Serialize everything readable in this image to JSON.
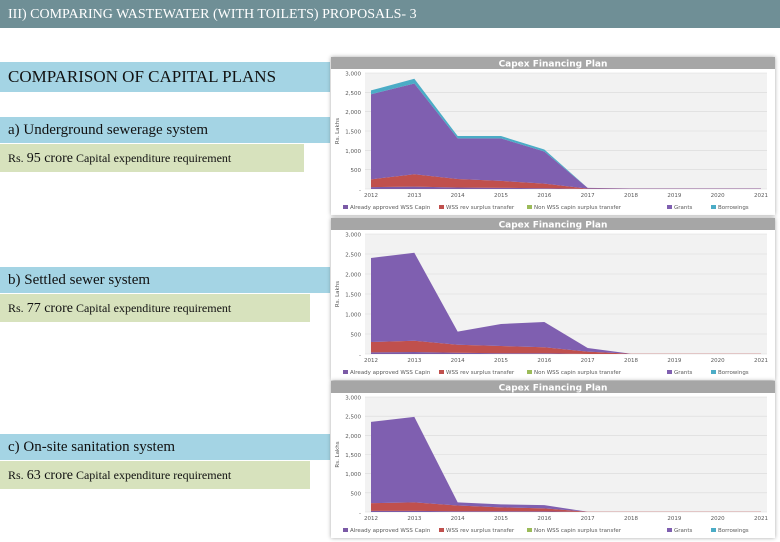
{
  "header": {
    "title": "III) COMPARING WASTEWATER (WITH TOILETS) PROPOSALS- 3"
  },
  "section_title": "COMPARISON OF CAPITAL PLANS",
  "options": [
    {
      "label": "a) Underground sewerage system",
      "cost_prefix": "Rs. ",
      "cost_amount": "95 crore",
      "cost_suffix": " Capital expenditure requirement"
    },
    {
      "label": "b) Settled sewer system",
      "cost_prefix": "Rs. ",
      "cost_amount": "77 crore",
      "cost_suffix": " Capital expenditure requirement"
    },
    {
      "label": "c) On-site sanitation system",
      "cost_prefix": "Rs. ",
      "cost_amount": "63 crore",
      "cost_suffix": " Capital expenditure requirement"
    }
  ],
  "colors": {
    "approved": "#7b5aa6",
    "wss_transfer": "#c0504d",
    "non_wss": "#9bbb59",
    "grants": "#7f5fb0",
    "borrowings": "#4bacc6"
  },
  "chart_data": [
    {
      "type": "area",
      "title": "Capex Financing Plan",
      "ylabel": "Rs. Lakhs",
      "x": [
        "2012",
        "2013",
        "2014",
        "2015",
        "2016",
        "2017",
        "2018",
        "2019",
        "2020",
        "2021"
      ],
      "yticks": [
        "-",
        "500",
        "1,000",
        "1,500",
        "2,000",
        "2,500",
        "3,000"
      ],
      "ylim": [
        0,
        3000
      ],
      "series": [
        {
          "name": "Already approved WSS Capin",
          "values": [
            50,
            60,
            40,
            30,
            20,
            0,
            0,
            0,
            0,
            0
          ]
        },
        {
          "name": "WSS rev surplus transfer",
          "values": [
            200,
            320,
            220,
            180,
            120,
            10,
            5,
            5,
            5,
            5
          ]
        },
        {
          "name": "Non WSS capin surplus transfer",
          "values": [
            0,
            0,
            0,
            0,
            0,
            0,
            0,
            0,
            0,
            0
          ]
        },
        {
          "name": "Grants",
          "values": [
            2200,
            2350,
            1050,
            1100,
            830,
            20,
            10,
            10,
            10,
            10
          ]
        },
        {
          "name": "Borrowings",
          "values": [
            100,
            120,
            60,
            60,
            50,
            0,
            0,
            0,
            0,
            0
          ]
        }
      ]
    },
    {
      "type": "area",
      "title": "Capex Financing Plan",
      "ylabel": "Rs. Lakhs",
      "x": [
        "2012",
        "2013",
        "2014",
        "2015",
        "2016",
        "2017",
        "2018",
        "2019",
        "2020",
        "2021"
      ],
      "yticks": [
        "-",
        "500",
        "1,000",
        "1,500",
        "2,000",
        "2,500",
        "3,000"
      ],
      "ylim": [
        0,
        3000
      ],
      "series": [
        {
          "name": "Already approved WSS Capin",
          "values": [
            40,
            50,
            30,
            20,
            20,
            0,
            0,
            0,
            0,
            0
          ]
        },
        {
          "name": "WSS rev surplus transfer",
          "values": [
            260,
            280,
            200,
            180,
            150,
            60,
            5,
            5,
            5,
            5
          ]
        },
        {
          "name": "Non WSS capin surplus transfer",
          "values": [
            0,
            0,
            0,
            0,
            0,
            0,
            0,
            0,
            0,
            0
          ]
        },
        {
          "name": "Grants",
          "values": [
            2100,
            2200,
            330,
            550,
            630,
            90,
            0,
            0,
            0,
            0
          ]
        },
        {
          "name": "Borrowings",
          "values": [
            0,
            0,
            0,
            0,
            0,
            0,
            0,
            0,
            0,
            0
          ]
        }
      ]
    },
    {
      "type": "area",
      "title": "Capex Financing Plan",
      "ylabel": "Rs. Lakhs",
      "x": [
        "2012",
        "2013",
        "2014",
        "2015",
        "2016",
        "2017",
        "2018",
        "2019",
        "2020",
        "2021"
      ],
      "yticks": [
        "-",
        "500",
        "1,000",
        "1,500",
        "2,000",
        "2,500",
        "3,000"
      ],
      "ylim": [
        0,
        3000
      ],
      "series": [
        {
          "name": "Already approved WSS Capin",
          "values": [
            30,
            30,
            20,
            20,
            15,
            0,
            0,
            0,
            0,
            0
          ]
        },
        {
          "name": "WSS rev surplus transfer",
          "values": [
            200,
            220,
            150,
            100,
            80,
            5,
            5,
            5,
            5,
            5
          ]
        },
        {
          "name": "Non WSS capin surplus transfer",
          "values": [
            0,
            0,
            0,
            0,
            0,
            0,
            0,
            0,
            0,
            0
          ]
        },
        {
          "name": "Grants",
          "values": [
            2120,
            2230,
            80,
            80,
            85,
            0,
            0,
            0,
            0,
            0
          ]
        },
        {
          "name": "Borrowings",
          "values": [
            0,
            0,
            0,
            0,
            0,
            0,
            0,
            0,
            0,
            0
          ]
        }
      ]
    }
  ]
}
